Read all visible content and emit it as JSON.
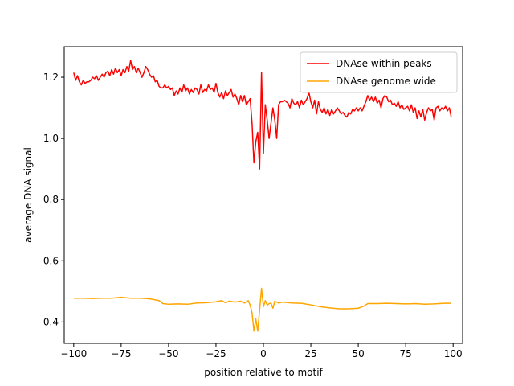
{
  "chart_data": {
    "type": "line",
    "title": "",
    "xlabel": "position relative to motif",
    "ylabel": "average DNA signal",
    "xlim": [
      -105,
      105
    ],
    "ylim": [
      0.33,
      1.3
    ],
    "xticks": [
      -100,
      -75,
      -50,
      -25,
      0,
      25,
      50,
      75,
      100
    ],
    "yticks": [
      0.4,
      0.6,
      0.8,
      1.0,
      1.2
    ],
    "grid": false,
    "legend_position": "top-right",
    "series": [
      {
        "name": "DNAse within peaks",
        "color": "#ff0000",
        "points": [
          [
            -100,
            1.215
          ],
          [
            -99,
            1.19
          ],
          [
            -98,
            1.205
          ],
          [
            -97,
            1.185
          ],
          [
            -96,
            1.175
          ],
          [
            -95,
            1.19
          ],
          [
            -94,
            1.18
          ],
          [
            -93,
            1.185
          ],
          [
            -92,
            1.185
          ],
          [
            -91,
            1.19
          ],
          [
            -90,
            1.2
          ],
          [
            -89,
            1.195
          ],
          [
            -88,
            1.205
          ],
          [
            -87,
            1.19
          ],
          [
            -86,
            1.2
          ],
          [
            -85,
            1.21
          ],
          [
            -84,
            1.2
          ],
          [
            -83,
            1.215
          ],
          [
            -82,
            1.22
          ],
          [
            -81,
            1.205
          ],
          [
            -80,
            1.225
          ],
          [
            -79,
            1.21
          ],
          [
            -78,
            1.23
          ],
          [
            -77,
            1.215
          ],
          [
            -76,
            1.225
          ],
          [
            -75,
            1.205
          ],
          [
            -74,
            1.225
          ],
          [
            -73,
            1.215
          ],
          [
            -72,
            1.235
          ],
          [
            -71,
            1.22
          ],
          [
            -70,
            1.255
          ],
          [
            -69,
            1.225
          ],
          [
            -68,
            1.235
          ],
          [
            -67,
            1.215
          ],
          [
            -66,
            1.23
          ],
          [
            -65,
            1.215
          ],
          [
            -64,
            1.2
          ],
          [
            -63,
            1.215
          ],
          [
            -62,
            1.235
          ],
          [
            -61,
            1.225
          ],
          [
            -60,
            1.21
          ],
          [
            -59,
            1.2
          ],
          [
            -58,
            1.205
          ],
          [
            -57,
            1.185
          ],
          [
            -56,
            1.19
          ],
          [
            -55,
            1.17
          ],
          [
            -54,
            1.165
          ],
          [
            -53,
            1.165
          ],
          [
            -52,
            1.175
          ],
          [
            -51,
            1.165
          ],
          [
            -50,
            1.17
          ],
          [
            -49,
            1.16
          ],
          [
            -48,
            1.165
          ],
          [
            -47,
            1.14
          ],
          [
            -46,
            1.155
          ],
          [
            -45,
            1.145
          ],
          [
            -44,
            1.165
          ],
          [
            -43,
            1.15
          ],
          [
            -42,
            1.175
          ],
          [
            -41,
            1.155
          ],
          [
            -40,
            1.165
          ],
          [
            -39,
            1.145
          ],
          [
            -38,
            1.16
          ],
          [
            -37,
            1.15
          ],
          [
            -36,
            1.165
          ],
          [
            -35,
            1.16
          ],
          [
            -34,
            1.145
          ],
          [
            -33,
            1.175
          ],
          [
            -32,
            1.15
          ],
          [
            -31,
            1.16
          ],
          [
            -30,
            1.155
          ],
          [
            -29,
            1.175
          ],
          [
            -28,
            1.16
          ],
          [
            -27,
            1.165
          ],
          [
            -26,
            1.15
          ],
          [
            -25,
            1.18
          ],
          [
            -24,
            1.15
          ],
          [
            -23,
            1.135
          ],
          [
            -22,
            1.15
          ],
          [
            -21,
            1.13
          ],
          [
            -20,
            1.155
          ],
          [
            -19,
            1.14
          ],
          [
            -18,
            1.15
          ],
          [
            -17,
            1.16
          ],
          [
            -16,
            1.135
          ],
          [
            -15,
            1.145
          ],
          [
            -14,
            1.13
          ],
          [
            -13,
            1.11
          ],
          [
            -12,
            1.14
          ],
          [
            -11,
            1.12
          ],
          [
            -10,
            1.14
          ],
          [
            -9,
            1.11
          ],
          [
            -8,
            1.12
          ],
          [
            -7,
            1.13
          ],
          [
            -6,
            1.05
          ],
          [
            -5,
            0.92
          ],
          [
            -4,
            0.99
          ],
          [
            -3,
            1.02
          ],
          [
            -2,
            0.9
          ],
          [
            -1,
            1.215
          ],
          [
            0,
            0.95
          ],
          [
            1,
            1.11
          ],
          [
            2,
            1.06
          ],
          [
            3,
            1.0
          ],
          [
            4,
            1.05
          ],
          [
            5,
            1.1
          ],
          [
            6,
            1.06
          ],
          [
            7,
            1.0
          ],
          [
            8,
            1.11
          ],
          [
            9,
            1.12
          ],
          [
            10,
            1.12
          ],
          [
            11,
            1.125
          ],
          [
            12,
            1.12
          ],
          [
            13,
            1.115
          ],
          [
            14,
            1.1
          ],
          [
            15,
            1.13
          ],
          [
            16,
            1.115
          ],
          [
            17,
            1.11
          ],
          [
            18,
            1.12
          ],
          [
            19,
            1.1
          ],
          [
            20,
            1.125
          ],
          [
            21,
            1.11
          ],
          [
            22,
            1.12
          ],
          [
            23,
            1.13
          ],
          [
            24,
            1.15
          ],
          [
            25,
            1.12
          ],
          [
            26,
            1.1
          ],
          [
            27,
            1.125
          ],
          [
            28,
            1.08
          ],
          [
            29,
            1.12
          ],
          [
            30,
            1.095
          ],
          [
            31,
            1.085
          ],
          [
            32,
            1.1
          ],
          [
            33,
            1.08
          ],
          [
            34,
            1.095
          ],
          [
            35,
            1.075
          ],
          [
            36,
            1.095
          ],
          [
            37,
            1.08
          ],
          [
            38,
            1.09
          ],
          [
            39,
            1.1
          ],
          [
            40,
            1.09
          ],
          [
            41,
            1.08
          ],
          [
            42,
            1.085
          ],
          [
            43,
            1.075
          ],
          [
            44,
            1.07
          ],
          [
            45,
            1.085
          ],
          [
            46,
            1.08
          ],
          [
            47,
            1.095
          ],
          [
            48,
            1.09
          ],
          [
            49,
            1.1
          ],
          [
            50,
            1.09
          ],
          [
            51,
            1.1
          ],
          [
            52,
            1.09
          ],
          [
            53,
            1.105
          ],
          [
            54,
            1.12
          ],
          [
            55,
            1.14
          ],
          [
            56,
            1.125
          ],
          [
            57,
            1.135
          ],
          [
            58,
            1.12
          ],
          [
            59,
            1.135
          ],
          [
            60,
            1.115
          ],
          [
            61,
            1.125
          ],
          [
            62,
            1.1
          ],
          [
            63,
            1.13
          ],
          [
            64,
            1.14
          ],
          [
            65,
            1.135
          ],
          [
            66,
            1.12
          ],
          [
            67,
            1.125
          ],
          [
            68,
            1.11
          ],
          [
            69,
            1.115
          ],
          [
            70,
            1.105
          ],
          [
            71,
            1.12
          ],
          [
            72,
            1.1
          ],
          [
            73,
            1.11
          ],
          [
            74,
            1.095
          ],
          [
            75,
            1.1
          ],
          [
            76,
            1.105
          ],
          [
            77,
            1.09
          ],
          [
            78,
            1.11
          ],
          [
            79,
            1.085
          ],
          [
            80,
            1.1
          ],
          [
            81,
            1.065
          ],
          [
            82,
            1.09
          ],
          [
            83,
            1.07
          ],
          [
            84,
            1.095
          ],
          [
            85,
            1.06
          ],
          [
            86,
            1.085
          ],
          [
            87,
            1.1
          ],
          [
            88,
            1.09
          ],
          [
            89,
            1.095
          ],
          [
            90,
            1.06
          ],
          [
            91,
            1.1
          ],
          [
            92,
            1.105
          ],
          [
            93,
            1.09
          ],
          [
            94,
            1.1
          ],
          [
            95,
            1.095
          ],
          [
            96,
            1.105
          ],
          [
            97,
            1.09
          ],
          [
            98,
            1.1
          ],
          [
            99,
            1.07
          ]
        ]
      },
      {
        "name": "DNAse genome wide",
        "color": "#ffa500",
        "points": [
          [
            -100,
            0.478
          ],
          [
            -95,
            0.478
          ],
          [
            -90,
            0.477
          ],
          [
            -85,
            0.478
          ],
          [
            -80,
            0.478
          ],
          [
            -75,
            0.481
          ],
          [
            -70,
            0.478
          ],
          [
            -65,
            0.478
          ],
          [
            -60,
            0.476
          ],
          [
            -55,
            0.47
          ],
          [
            -53,
            0.46
          ],
          [
            -50,
            0.458
          ],
          [
            -45,
            0.459
          ],
          [
            -40,
            0.458
          ],
          [
            -35,
            0.462
          ],
          [
            -30,
            0.463
          ],
          [
            -25,
            0.466
          ],
          [
            -22,
            0.47
          ],
          [
            -20,
            0.463
          ],
          [
            -18,
            0.468
          ],
          [
            -15,
            0.465
          ],
          [
            -12,
            0.468
          ],
          [
            -10,
            0.462
          ],
          [
            -8,
            0.47
          ],
          [
            -7,
            0.455
          ],
          [
            -6,
            0.43
          ],
          [
            -5,
            0.37
          ],
          [
            -4,
            0.41
          ],
          [
            -3,
            0.37
          ],
          [
            -2,
            0.44
          ],
          [
            -1,
            0.51
          ],
          [
            0,
            0.45
          ],
          [
            1,
            0.47
          ],
          [
            2,
            0.455
          ],
          [
            3,
            0.46
          ],
          [
            4,
            0.462
          ],
          [
            5,
            0.445
          ],
          [
            6,
            0.468
          ],
          [
            8,
            0.462
          ],
          [
            10,
            0.465
          ],
          [
            15,
            0.462
          ],
          [
            20,
            0.461
          ],
          [
            25,
            0.456
          ],
          [
            30,
            0.45
          ],
          [
            35,
            0.446
          ],
          [
            40,
            0.443
          ],
          [
            45,
            0.443
          ],
          [
            50,
            0.445
          ],
          [
            53,
            0.452
          ],
          [
            55,
            0.46
          ],
          [
            60,
            0.46
          ],
          [
            65,
            0.461
          ],
          [
            70,
            0.46
          ],
          [
            75,
            0.459
          ],
          [
            80,
            0.46
          ],
          [
            85,
            0.458
          ],
          [
            90,
            0.459
          ],
          [
            95,
            0.461
          ],
          [
            99,
            0.461
          ]
        ]
      }
    ]
  }
}
